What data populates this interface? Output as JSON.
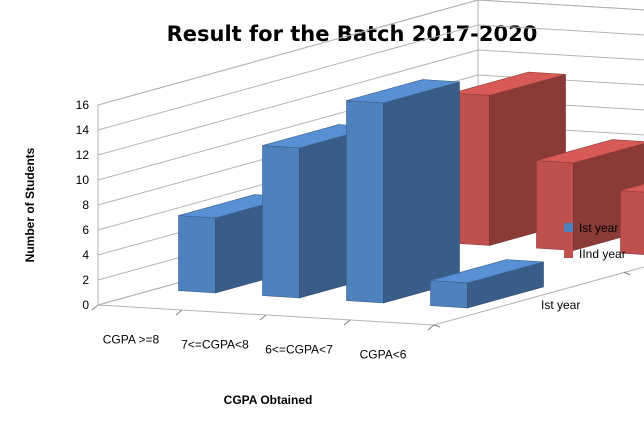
{
  "chart_data": {
    "type": "bar",
    "subtype": "3d-clustered-column",
    "title": "Result for the Batch 2017-2020",
    "xlabel": "CGPA Obtained",
    "ylabel": "Number of Students",
    "categories": [
      "CGPA >=8",
      "7<=CGPA<8",
      "6<=CGPA<7",
      "CGPA<6"
    ],
    "depth_labels": [
      "IInd year",
      "Ist year"
    ],
    "series": [
      {
        "name": "Ist year",
        "values": [
          6,
          12,
          16,
          2
        ],
        "color": "#4F81BD"
      },
      {
        "name": "IInd year",
        "values": [
          8,
          12,
          7,
          5
        ],
        "color": "#C0504D"
      }
    ],
    "ylim": [
      0,
      16
    ],
    "yticks": [
      "0",
      "2",
      "4",
      "6",
      "8",
      "10",
      "12",
      "14",
      "16"
    ],
    "grid": true,
    "legend_position": "right"
  }
}
